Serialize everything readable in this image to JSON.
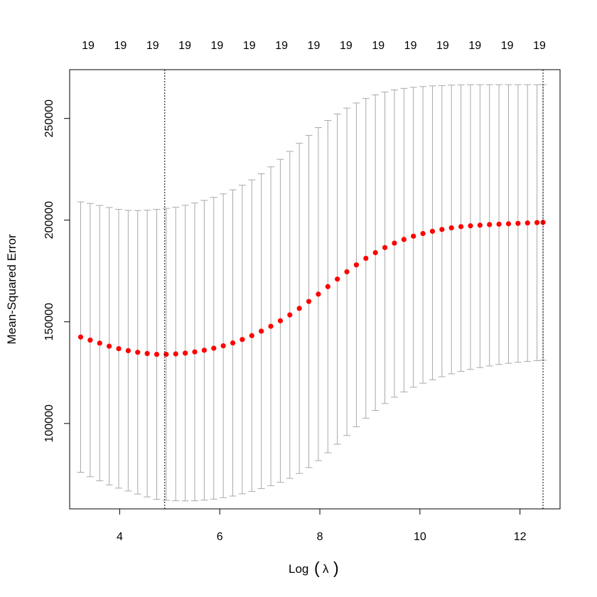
{
  "chart_data": {
    "type": "scatter",
    "xlabel": {
      "prefix": "Log",
      "open": "(",
      "symbol": "λ",
      "close": ")"
    },
    "ylabel": "Mean-Squared Error",
    "xlim": [
      3.0,
      12.8
    ],
    "ylim": [
      58000,
      274000
    ],
    "x_ticks": [
      4,
      6,
      8,
      10,
      12
    ],
    "y_ticks": [
      100000,
      150000,
      200000,
      250000
    ],
    "x_tick_labels": [
      "4",
      "6",
      "8",
      "10",
      "12"
    ],
    "y_tick_labels": [
      "100000",
      "150000",
      "200000",
      "250000"
    ],
    "top_labels": [
      "19",
      "19",
      "19",
      "19",
      "19",
      "19",
      "19",
      "19",
      "19",
      "19",
      "19",
      "19",
      "19",
      "19",
      "19"
    ],
    "vlines_x": [
      4.9,
      12.46
    ],
    "x": [
      3.22,
      3.41,
      3.6,
      3.79,
      3.98,
      4.17,
      4.36,
      4.55,
      4.74,
      4.93,
      5.12,
      5.31,
      5.5,
      5.69,
      5.88,
      6.07,
      6.26,
      6.45,
      6.64,
      6.83,
      7.02,
      7.21,
      7.4,
      7.59,
      7.78,
      7.97,
      8.16,
      8.35,
      8.54,
      8.73,
      8.92,
      9.11,
      9.3,
      9.49,
      9.68,
      9.87,
      10.06,
      10.25,
      10.44,
      10.63,
      10.82,
      11.01,
      11.2,
      11.39,
      11.58,
      11.77,
      11.96,
      12.15,
      12.34,
      12.46
    ],
    "mean": [
      142500,
      141000,
      139500,
      138000,
      136800,
      135800,
      135000,
      134400,
      134000,
      134000,
      134200,
      134600,
      135200,
      136000,
      137000,
      138200,
      139600,
      141300,
      143200,
      145400,
      147800,
      150500,
      153400,
      156600,
      160000,
      163600,
      167300,
      171000,
      174600,
      178000,
      181200,
      184000,
      186500,
      188700,
      190500,
      192100,
      193400,
      194500,
      195400,
      196200,
      196800,
      197200,
      197500,
      197800,
      198000,
      198200,
      198400,
      198600,
      198800,
      198900
    ],
    "upper": [
      209000,
      208200,
      207200,
      206200,
      205300,
      204800,
      204700,
      204900,
      205300,
      205800,
      206400,
      207300,
      208400,
      209700,
      211200,
      212900,
      214900,
      217200,
      219800,
      222800,
      226200,
      229900,
      233800,
      237800,
      241700,
      245500,
      249000,
      252200,
      255100,
      257600,
      259800,
      261600,
      263000,
      264000,
      264800,
      265300,
      265700,
      266000,
      266200,
      266400,
      266500,
      266600,
      266600,
      266600,
      266600,
      266600,
      266600,
      266600,
      266600,
      266600
    ],
    "lower": [
      76000,
      73800,
      71800,
      69800,
      68200,
      66800,
      65300,
      63900,
      62700,
      62200,
      62000,
      61900,
      62000,
      62300,
      62800,
      63500,
      64300,
      65400,
      66600,
      68000,
      69400,
      71100,
      73000,
      75400,
      78300,
      81700,
      85600,
      89800,
      94100,
      98400,
      102600,
      106400,
      109800,
      112900,
      115500,
      117800,
      119800,
      121500,
      123000,
      124400,
      125600,
      126600,
      127500,
      128300,
      129000,
      129600,
      130100,
      130500,
      130900,
      131100
    ],
    "colors": {
      "points": "#ff0000",
      "errorbars": "#a9a9a9",
      "vlines": "#000000"
    },
    "grid": false,
    "legend": "none"
  }
}
